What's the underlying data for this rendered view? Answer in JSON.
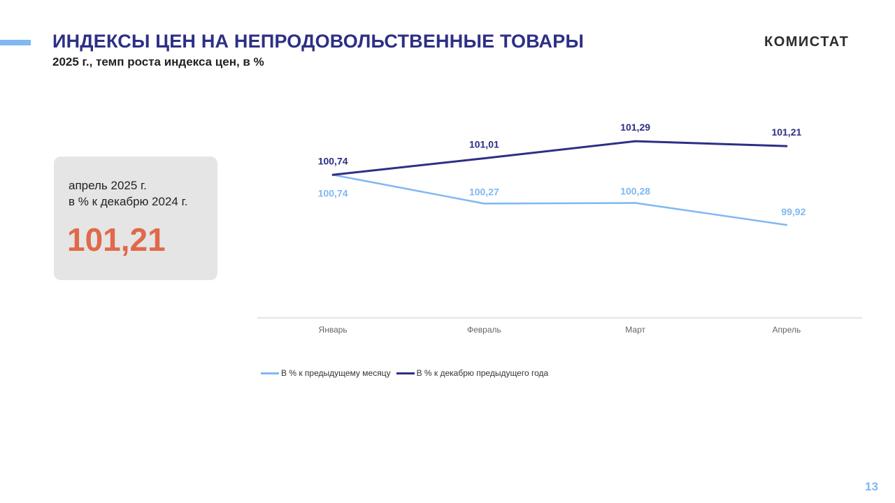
{
  "header": {
    "title": "ИНДЕКСЫ ЦЕН НА НЕПРОДОВОЛЬСТВЕННЫЕ  ТОВАРЫ",
    "subtitle": "2025 г., темп роста индекса цен, в %",
    "logo": "КОМИСТАТ"
  },
  "kpi": {
    "label_line1": "апрель 2025 г.",
    "label_line2": "в % к декабрю 2024 г.",
    "value": "101,21"
  },
  "page_number": "13",
  "colors": {
    "title": "#2d2f86",
    "accent": "#7fb8f2",
    "kpi_value": "#e0694a",
    "series_monthly": "#7fb8f2",
    "series_dec": "#2d2f86"
  },
  "chart_data": {
    "type": "line",
    "categories": [
      "Январь",
      "Февраль",
      "Март",
      "Апрель"
    ],
    "series": [
      {
        "name": "В % к предыдущему месяцу",
        "values": [
          100.74,
          100.27,
          100.28,
          99.92
        ],
        "labels": [
          "100,74",
          "100,27",
          "100,28",
          "99,92"
        ],
        "color": "#7fb8f2"
      },
      {
        "name": "В % к декабрю предыдущего года",
        "values": [
          100.74,
          101.01,
          101.29,
          101.21
        ],
        "labels": [
          "100,74",
          "101,01",
          "101,29",
          "101,21"
        ],
        "color": "#2d2f86"
      }
    ],
    "title": "",
    "xlabel": "",
    "ylabel": "",
    "ylim": [
      98.4,
      102.0
    ],
    "grid": false,
    "legend_position": "bottom-left"
  }
}
